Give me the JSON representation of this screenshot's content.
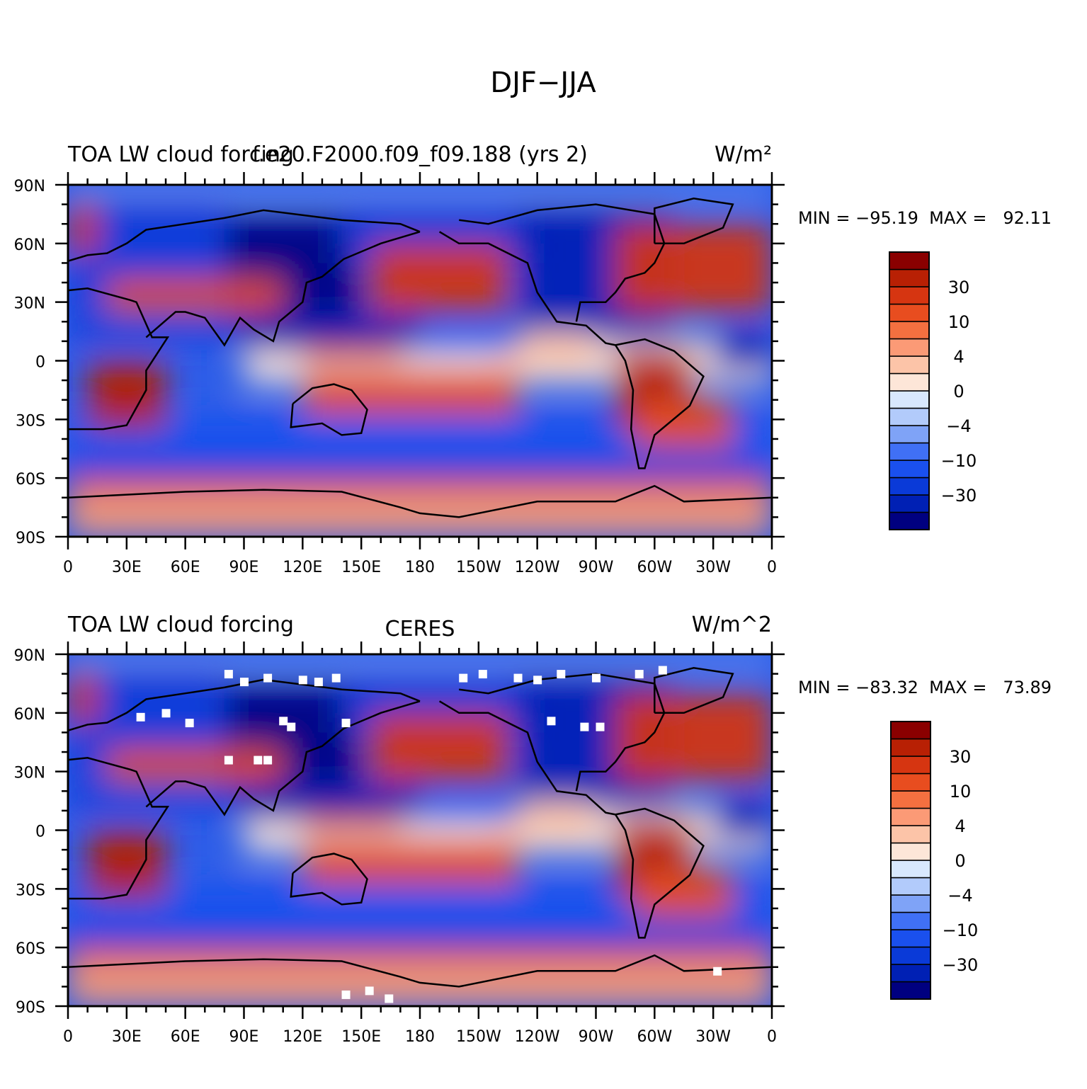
{
  "figure": {
    "title": "DJF−JJA"
  },
  "panels": [
    {
      "left_title": "TOA LW cloud forcing",
      "center_title": "f.e20.F2000.f09_f09.188 (yrs 2)",
      "units": "W/m²",
      "min_max": "MIN = −95.19  MAX =   92.11"
    },
    {
      "left_title": "TOA LW cloud forcing",
      "center_title": "CERES",
      "units": "W/m^2",
      "min_max": "MIN = −83.32  MAX =   73.89"
    }
  ],
  "axes": {
    "lat_labels": [
      "90N",
      "60N",
      "30N",
      "0",
      "30S",
      "60S",
      "90S"
    ],
    "lon_labels": [
      "0",
      "30E",
      "60E",
      "90E",
      "120E",
      "150E",
      "180",
      "150W",
      "120W",
      "90W",
      "60W",
      "30W",
      "0"
    ]
  },
  "colorbar": {
    "colors": [
      "#000080",
      "#0020b4",
      "#0a3ad8",
      "#1a50ee",
      "#4070f5",
      "#7fa3f7",
      "#b2cbfb",
      "#d8e8fd",
      "#fde6d8",
      "#fcc4a8",
      "#fb9a76",
      "#f47040",
      "#e84d1f",
      "#d63511",
      "#b82004",
      "#8a0000"
    ],
    "labels": [
      "30",
      "10",
      "4",
      "0",
      "−4",
      "−10",
      "−30"
    ]
  },
  "chart_data": {
    "type": "heatmap",
    "title": "DJF−JJA",
    "fields": [
      {
        "name": "f.e20.F2000.f09_f09.188 (yrs 2)",
        "variable": "TOA LW cloud forcing",
        "units": "W/m²",
        "min": -95.19,
        "max": 92.11
      },
      {
        "name": "CERES",
        "variable": "TOA LW cloud forcing",
        "units": "W/m^2",
        "min": -83.32,
        "max": 73.89
      }
    ],
    "colorbar_levels": [
      -40,
      -30,
      -20,
      -10,
      -6,
      -4,
      -2,
      0,
      2,
      4,
      6,
      10,
      20,
      30,
      40
    ],
    "lat_range": [
      -90,
      90
    ],
    "lon_range": [
      0,
      360
    ],
    "projection": "cylindrical equidistant"
  },
  "regions": [
    {
      "lon": [
        90,
        360
      ],
      "lat": [
        -12,
        12
      ],
      "v": 1.5
    },
    {
      "lon": [
        0,
        80
      ],
      "lat": [
        25,
        90
      ],
      "v": -28
    },
    {
      "lon": [
        80,
        150
      ],
      "lat": [
        10,
        75
      ],
      "v": -45
    },
    {
      "lon": [
        140,
        240
      ],
      "lat": [
        50,
        80
      ],
      "v": -28
    },
    {
      "lon": [
        230,
        310
      ],
      "lat": [
        10,
        80
      ],
      "v": -40
    },
    {
      "lon": [
        0,
        110
      ],
      "lat": [
        -60,
        -28
      ],
      "v": -14
    },
    {
      "lon": [
        110,
        360
      ],
      "lat": [
        -60,
        -28
      ],
      "v": -14
    },
    {
      "lon": [
        0,
        360
      ],
      "lat": [
        -60,
        -52
      ],
      "v": -26
    },
    {
      "lon": [
        0,
        360
      ],
      "lat": [
        -90,
        -68
      ],
      "v": 4
    },
    {
      "lon": [
        0,
        360
      ],
      "lat": [
        -68,
        -60
      ],
      "v": 14
    },
    {
      "lon": [
        0,
        360
      ],
      "lat": [
        84,
        90
      ],
      "v": -6
    },
    {
      "lon": [
        155,
        225
      ],
      "lat": [
        25,
        60
      ],
      "v": 22
    },
    {
      "lon": [
        280,
        360
      ],
      "lat": [
        25,
        70
      ],
      "v": 22
    },
    {
      "lon": [
        0,
        15
      ],
      "lat": [
        55,
        80
      ],
      "v": 26
    },
    {
      "lon": [
        20,
        110
      ],
      "lat": [
        25,
        42
      ],
      "v": 15
    },
    {
      "lon": [
        10,
        50
      ],
      "lat": [
        -35,
        0
      ],
      "v": 34
    },
    {
      "lon": [
        280,
        320
      ],
      "lat": [
        -35,
        5
      ],
      "v": 34
    },
    {
      "lon": [
        120,
        230
      ],
      "lat": [
        -28,
        -5
      ],
      "v": 18
    },
    {
      "lon": [
        220,
        270
      ],
      "lat": [
        -5,
        15
      ],
      "v": 3
    },
    {
      "lon": [
        0,
        90
      ],
      "lat": [
        10,
        22
      ],
      "v": -28
    },
    {
      "lon": [
        90,
        180
      ],
      "lat": [
        5,
        25
      ],
      "v": -32
    },
    {
      "lon": [
        180,
        230
      ],
      "lat": [
        5,
        15
      ],
      "v": -20
    },
    {
      "lon": [
        330,
        360
      ],
      "lat": [
        -5,
        15
      ],
      "v": -38
    },
    {
      "lon": [
        120,
        170
      ],
      "lat": [
        0,
        8
      ],
      "v": 28
    },
    {
      "lon": [
        290,
        340
      ],
      "lat": [
        -45,
        -20
      ],
      "v": 12
    }
  ]
}
